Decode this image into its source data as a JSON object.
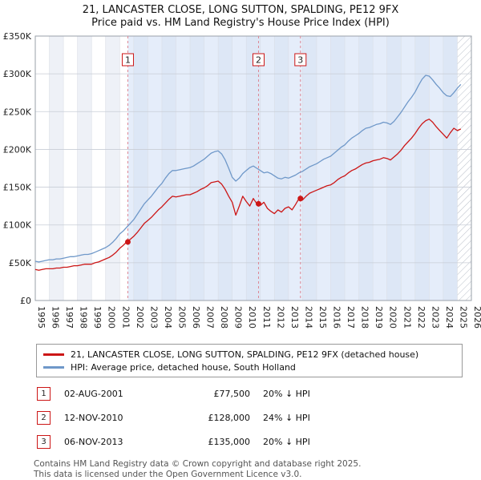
{
  "chart_data": {
    "type": "line",
    "title": "21, LANCASTER CLOSE, LONG SUTTON, SPALDING, PE12 9FX",
    "subtitle": "Price paid vs. HM Land Registry's House Price Index (HPI)",
    "x_min": 1995,
    "x_max": 2026,
    "x_start": 1995,
    "x_step": 0.25,
    "y_max_k": 350,
    "y_ticks": [
      "£0",
      "£50K",
      "£100K",
      "£150K",
      "£200K",
      "£250K",
      "£300K",
      "£350K"
    ],
    "x_tick_years": [
      1995,
      1996,
      1997,
      1998,
      1999,
      2000,
      2001,
      2002,
      2003,
      2004,
      2005,
      2006,
      2007,
      2008,
      2009,
      2010,
      2011,
      2012,
      2013,
      2014,
      2015,
      2016,
      2017,
      2018,
      2019,
      2020,
      2021,
      2022,
      2023,
      2024,
      2025,
      2026
    ],
    "shade_start": 2001.58,
    "shade_end": 2025.0,
    "hatch_start": 2025.0,
    "colors": {
      "accent_red": "#cc1616",
      "hpi_blue": "#6f98c9",
      "sale_line": "#dd8895",
      "stripe": "#eef1f7",
      "shade": "#cfdff5",
      "grid_h": "#c8cdd6",
      "grid_v": "#dadee6",
      "border": "#9aa0aa"
    },
    "series": [
      {
        "name": "21, LANCASTER CLOSE, LONG SUTTON, SPALDING, PE12 9FX (detached house)",
        "color": "#cc1616",
        "values_k": [
          41,
          40,
          41,
          42,
          42,
          42,
          43,
          43,
          44,
          44,
          45,
          46,
          46,
          47,
          48,
          48,
          48,
          50,
          51,
          53,
          55,
          57,
          60,
          64,
          69,
          73,
          77.5,
          81,
          85,
          90,
          96,
          102,
          106,
          110,
          115,
          120,
          124,
          129,
          134,
          138,
          137,
          138,
          139,
          140,
          140,
          142,
          144,
          147,
          149,
          152,
          156,
          157,
          158,
          154,
          147,
          138,
          130,
          113,
          125,
          138,
          131,
          125,
          135,
          128,
          126,
          130,
          122,
          118,
          115,
          120,
          117,
          122,
          124,
          120,
          127,
          135,
          133,
          138,
          142,
          144,
          146,
          148,
          150,
          152,
          153,
          156,
          160,
          163,
          165,
          169,
          172,
          174,
          177,
          180,
          182,
          183,
          185,
          186,
          187,
          189,
          188,
          186,
          190,
          194,
          199,
          205,
          210,
          215,
          221,
          228,
          234,
          238,
          240,
          236,
          230,
          225,
          220,
          215,
          222,
          228,
          225,
          227
        ]
      },
      {
        "name": "HPI: Average price, detached house, South Holland",
        "color": "#6f98c9",
        "values_k": [
          52,
          51,
          52,
          53,
          54,
          54,
          55,
          55,
          56,
          57,
          58,
          58,
          59,
          60,
          61,
          61,
          62,
          64,
          66,
          68,
          70,
          73,
          77,
          82,
          88,
          92,
          97,
          102,
          107,
          114,
          121,
          128,
          133,
          138,
          144,
          150,
          155,
          162,
          168,
          172,
          172,
          173,
          174,
          175,
          176,
          178,
          181,
          184,
          187,
          191,
          195,
          197,
          198,
          194,
          186,
          175,
          163,
          158,
          162,
          168,
          172,
          176,
          178,
          175,
          172,
          169,
          170,
          168,
          165,
          162,
          161,
          163,
          162,
          164,
          166,
          169,
          171,
          174,
          177,
          179,
          181,
          184,
          187,
          189,
          191,
          195,
          199,
          203,
          206,
          211,
          215,
          218,
          221,
          225,
          228,
          229,
          231,
          233,
          234,
          236,
          235,
          233,
          237,
          243,
          249,
          256,
          263,
          269,
          276,
          285,
          293,
          298,
          297,
          292,
          286,
          281,
          275,
          271,
          270,
          275,
          281,
          286
        ]
      }
    ],
    "sales": [
      {
        "n": "1",
        "x": 2001.58,
        "y_k": 77.5
      },
      {
        "n": "2",
        "x": 2010.87,
        "y_k": 128
      },
      {
        "n": "3",
        "x": 2013.85,
        "y_k": 135
      }
    ]
  },
  "sales_table": {
    "rows": [
      {
        "num": "1",
        "date": "02-AUG-2001",
        "price": "£77,500",
        "vs_hpi": "20% ↓ HPI"
      },
      {
        "num": "2",
        "date": "12-NOV-2010",
        "price": "£128,000",
        "vs_hpi": "24% ↓ HPI"
      },
      {
        "num": "3",
        "date": "06-NOV-2013",
        "price": "£135,000",
        "vs_hpi": "20% ↓ HPI"
      }
    ]
  },
  "footer": {
    "line1": "Contains HM Land Registry data © Crown copyright and database right 2025.",
    "line2": "This data is licensed under the Open Government Licence v3.0."
  }
}
